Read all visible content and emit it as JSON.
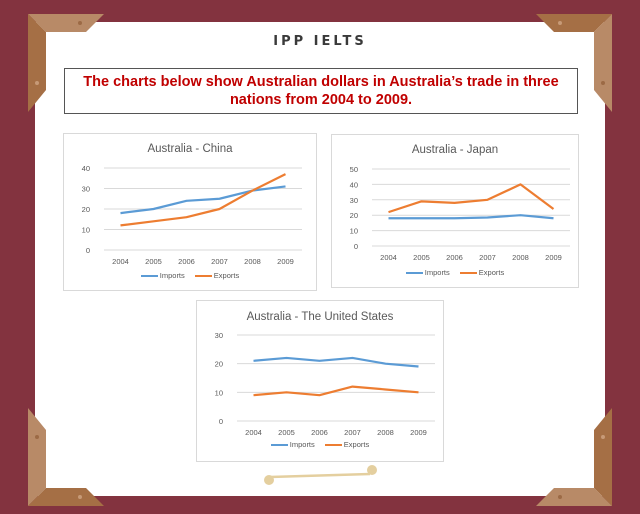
{
  "header": {
    "brand": "IPP IELTS",
    "prompt": "The charts below show Australian dollars in Australia’s trade in three nations from 2004 to 2009."
  },
  "colors": {
    "frame": "#83333f",
    "corner_light": "#b88a67",
    "corner_dark": "#9c6a45",
    "imports": "#5b9bd5",
    "exports": "#ed7d31",
    "prompt_text": "#c00000"
  },
  "legend": {
    "imports": "Imports",
    "exports": "Exports"
  },
  "chart_data": [
    {
      "type": "line",
      "title": "Australia - China",
      "xlabel": "",
      "ylabel": "",
      "categories": [
        "2004",
        "2005",
        "2006",
        "2007",
        "2008",
        "2009"
      ],
      "ylim": [
        0,
        40
      ],
      "yticks": [
        0,
        10,
        20,
        30,
        40
      ],
      "grid": true,
      "legend_position": "bottom",
      "series": [
        {
          "name": "Imports",
          "color": "#5b9bd5",
          "values": [
            18,
            20,
            24,
            25,
            29,
            31
          ]
        },
        {
          "name": "Exports",
          "color": "#ed7d31",
          "values": [
            12,
            14,
            16,
            20,
            29,
            37
          ]
        }
      ]
    },
    {
      "type": "line",
      "title": "Australia - Japan",
      "xlabel": "",
      "ylabel": "",
      "categories": [
        "2004",
        "2005",
        "2006",
        "2007",
        "2008",
        "2009"
      ],
      "ylim": [
        0,
        50
      ],
      "yticks": [
        0,
        10,
        20,
        30,
        40,
        50
      ],
      "grid": true,
      "legend_position": "bottom",
      "series": [
        {
          "name": "Imports",
          "color": "#5b9bd5",
          "values": [
            18,
            18,
            18,
            18.5,
            20,
            18
          ]
        },
        {
          "name": "Exports",
          "color": "#ed7d31",
          "values": [
            22,
            29,
            28,
            30,
            40,
            24
          ]
        }
      ]
    },
    {
      "type": "line",
      "title": "Australia - The United States",
      "xlabel": "",
      "ylabel": "",
      "categories": [
        "2004",
        "2005",
        "2006",
        "2007",
        "2008",
        "2009"
      ],
      "ylim": [
        0,
        30
      ],
      "yticks": [
        0,
        10,
        20,
        30
      ],
      "grid": true,
      "legend_position": "bottom",
      "series": [
        {
          "name": "Imports",
          "color": "#5b9bd5",
          "values": [
            21,
            22,
            21,
            22,
            20,
            19
          ]
        },
        {
          "name": "Exports",
          "color": "#ed7d31",
          "values": [
            9,
            10,
            9,
            12,
            11,
            10
          ]
        }
      ]
    }
  ]
}
